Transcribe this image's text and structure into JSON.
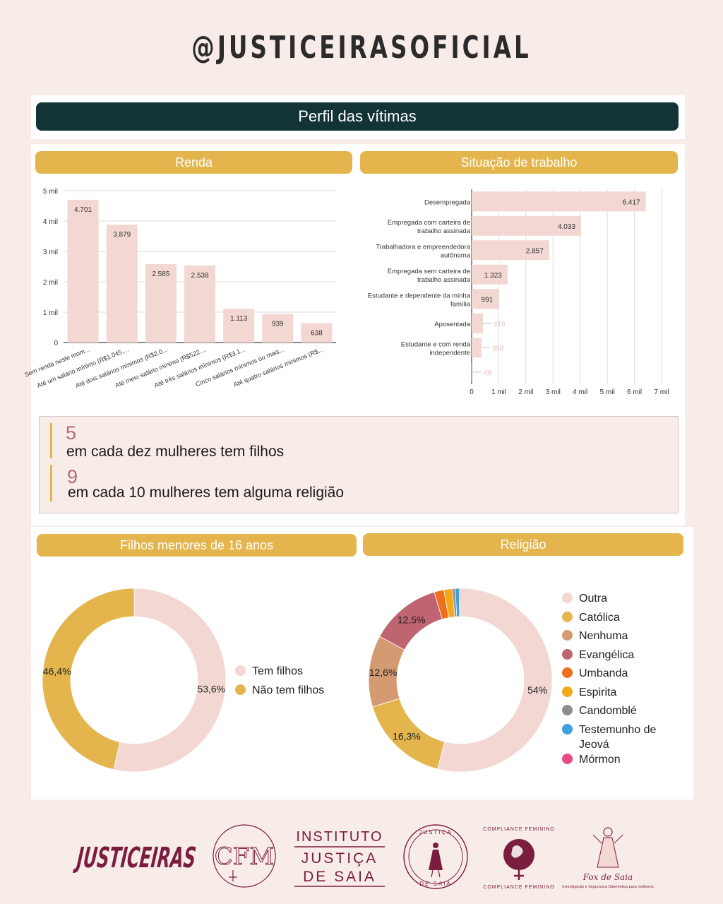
{
  "header": {
    "handle": "@JUSTICEIRASOFICIAL"
  },
  "banner": {
    "title": "Perfil das vítimas"
  },
  "sections": {
    "renda": "Renda",
    "trabalho": "Situação de trabalho",
    "filhos": "Filhos menores de 16 anos",
    "religiao": "Religião"
  },
  "stats": [
    {
      "number": "5",
      "text": "em cada dez mulheres tem filhos"
    },
    {
      "number": "9",
      "text": "em cada 10 mulheres tem alguma religião"
    }
  ],
  "chart_data": [
    {
      "type": "bar",
      "orientation": "vertical",
      "title": "Renda",
      "categories": [
        "Sem renda neste mom...",
        "Até um salário mínimo (R$1.045,...",
        "Até dois salários mínimos (R$2.0...",
        "Até meio salário mínimo (R$522....",
        "Até três salários mínimos (R$3.1...",
        "Cinco salários mínimos ou mais...",
        "Até quatro salários mínimos (R$..."
      ],
      "values": [
        4701,
        3879,
        2585,
        2538,
        1113,
        939,
        638
      ],
      "value_labels": [
        "4.701",
        "3.879",
        "2.585",
        "2.538",
        "1.113",
        "939",
        "638"
      ],
      "yticks": [
        "0",
        "1 mil",
        "2 mil",
        "3 mil",
        "4 mil",
        "5 mil"
      ],
      "ylim": [
        0,
        5000
      ],
      "grid": true,
      "color": "#f2d7d2"
    },
    {
      "type": "bar",
      "orientation": "horizontal",
      "title": "Situação de trabalho",
      "categories": [
        "Desempregada",
        "Empregada com carteira de trabalho assinada",
        "Trabalhadora e empreendedora autônoma",
        "Empregada sem carteira de trabalho assinada",
        "Estudante e dependente da minha família",
        "Aposentada",
        "Estudante e com renda independente",
        ""
      ],
      "category_lines": [
        [
          "Desempregada"
        ],
        [
          "Empregada com carteira de",
          "trabalho assinada"
        ],
        [
          "Trabalhadora e empreendedora",
          "autônoma"
        ],
        [
          "Empregada sem carteira de",
          "trabalho assinada"
        ],
        [
          "Estudante e dependente da minha",
          "família"
        ],
        [
          "Aposentada"
        ],
        [
          "Estudante e com renda",
          "independente"
        ],
        []
      ],
      "values": [
        6417,
        4033,
        2857,
        1323,
        991,
        416,
        358,
        49
      ],
      "value_labels": [
        "6.417",
        "4.033",
        "2.857",
        "1.323",
        "991",
        "416",
        "358",
        "49"
      ],
      "xticks": [
        "0",
        "1 mil",
        "2 mil",
        "3 mil",
        "4 mil",
        "5 mil",
        "6 mil",
        "7 mil"
      ],
      "xlim": [
        0,
        7000
      ],
      "grid": true,
      "color": "#f2d7d2"
    },
    {
      "type": "pie",
      "donut": true,
      "title": "Filhos menores de 16 anos",
      "labels": [
        "Tem filhos",
        "Não tem filhos"
      ],
      "values": [
        53.6,
        46.4
      ],
      "value_labels": [
        "53,6%",
        "46,4%"
      ],
      "colors": [
        "#f2d7d2",
        "#e3b54c"
      ],
      "legend": "right"
    },
    {
      "type": "pie",
      "donut": true,
      "title": "Religião",
      "labels": [
        "Outra",
        "Católica",
        "Nenhuma",
        "Evangélica",
        "Umbanda",
        "Espirita",
        "Candomblé",
        "Testemunho de Jeová",
        "Mórmon"
      ],
      "legend_lines": [
        [
          "Outra"
        ],
        [
          "Católica"
        ],
        [
          "Nenhuma"
        ],
        [
          "Evangélica"
        ],
        [
          "Umbanda"
        ],
        [
          "Espirita"
        ],
        [
          "Candomblé"
        ],
        [
          "Testemunho de",
          "Jeová"
        ],
        [
          "Mórmon"
        ]
      ],
      "values": [
        54.0,
        16.3,
        12.6,
        12.5,
        1.7,
        1.5,
        0.5,
        0.7,
        0.2
      ],
      "value_labels": [
        "54%",
        "16,3%",
        "12,6%",
        "12,5%",
        "",
        "",
        "",
        "",
        ""
      ],
      "colors": [
        "#f2d7d2",
        "#e3b54c",
        "#d49a72",
        "#bf6471",
        "#ee6f1d",
        "#f3a81c",
        "#8e8e8e",
        "#3da2dc",
        "#ea4b86"
      ],
      "legend": "right"
    }
  ],
  "footer_logos": {
    "justiceiras": "JUSTICEIRAS",
    "cfm": "CFM",
    "instituto_lines": [
      "INSTITUTO",
      "JUSTIÇA",
      "DE SAIA"
    ],
    "justica_de_saia_ring": [
      "JUSTIÇA",
      "DE SAIA"
    ],
    "compliance_ring": [
      "COMPLIANCE FEMININO",
      "COMPLIANCE FEMININO"
    ],
    "fox_de_saia": "Fox de Saia",
    "fox_de_saia_tagline": "Investigação e Segurança Cibernética para mulheres"
  }
}
